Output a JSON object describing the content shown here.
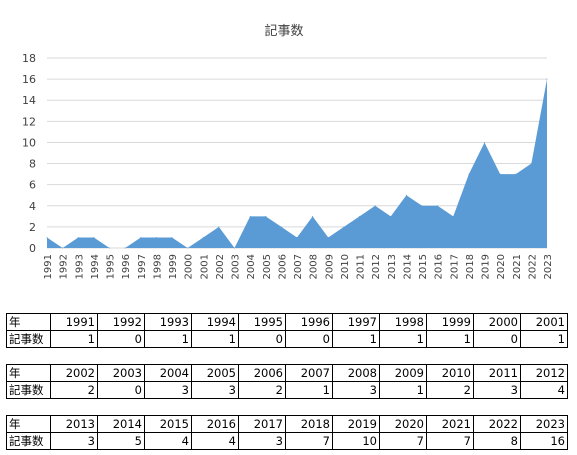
{
  "chart_data": {
    "type": "area",
    "title": "記事数",
    "x": [
      "1991",
      "1992",
      "1993",
      "1994",
      "1995",
      "1996",
      "1997",
      "1998",
      "1999",
      "2000",
      "2001",
      "2002",
      "2003",
      "2004",
      "2005",
      "2006",
      "2007",
      "2008",
      "2009",
      "2010",
      "2011",
      "2012",
      "2013",
      "2014",
      "2015",
      "2016",
      "2017",
      "2018",
      "2019",
      "2020",
      "2021",
      "2022",
      "2023"
    ],
    "values": [
      1,
      0,
      1,
      1,
      0,
      0,
      1,
      1,
      1,
      0,
      1,
      2,
      0,
      3,
      3,
      2,
      1,
      3,
      1,
      2,
      3,
      4,
      3,
      5,
      4,
      4,
      3,
      7,
      10,
      7,
      7,
      8,
      16
    ],
    "ylim": [
      0,
      18
    ],
    "yticks": [
      0,
      2,
      4,
      6,
      8,
      10,
      12,
      14,
      16,
      18
    ],
    "grid": true,
    "color": "#5b9bd5"
  },
  "table": {
    "row_label_year": "年",
    "row_label_count": "記事数",
    "blocks": [
      {
        "years": [
          "1991",
          "1992",
          "1993",
          "1994",
          "1995",
          "1996",
          "1997",
          "1998",
          "1999",
          "2000",
          "2001"
        ],
        "counts": [
          "1",
          "0",
          "1",
          "1",
          "0",
          "0",
          "1",
          "1",
          "1",
          "0",
          "1"
        ]
      },
      {
        "years": [
          "2002",
          "2003",
          "2004",
          "2005",
          "2006",
          "2007",
          "2008",
          "2009",
          "2010",
          "2011",
          "2012"
        ],
        "counts": [
          "2",
          "0",
          "3",
          "3",
          "2",
          "1",
          "3",
          "1",
          "2",
          "3",
          "4"
        ]
      },
      {
        "years": [
          "2013",
          "2014",
          "2015",
          "2016",
          "2017",
          "2018",
          "2019",
          "2020",
          "2021",
          "2022",
          "2023"
        ],
        "counts": [
          "3",
          "5",
          "4",
          "4",
          "3",
          "7",
          "10",
          "7",
          "7",
          "8",
          "16"
        ]
      }
    ]
  }
}
